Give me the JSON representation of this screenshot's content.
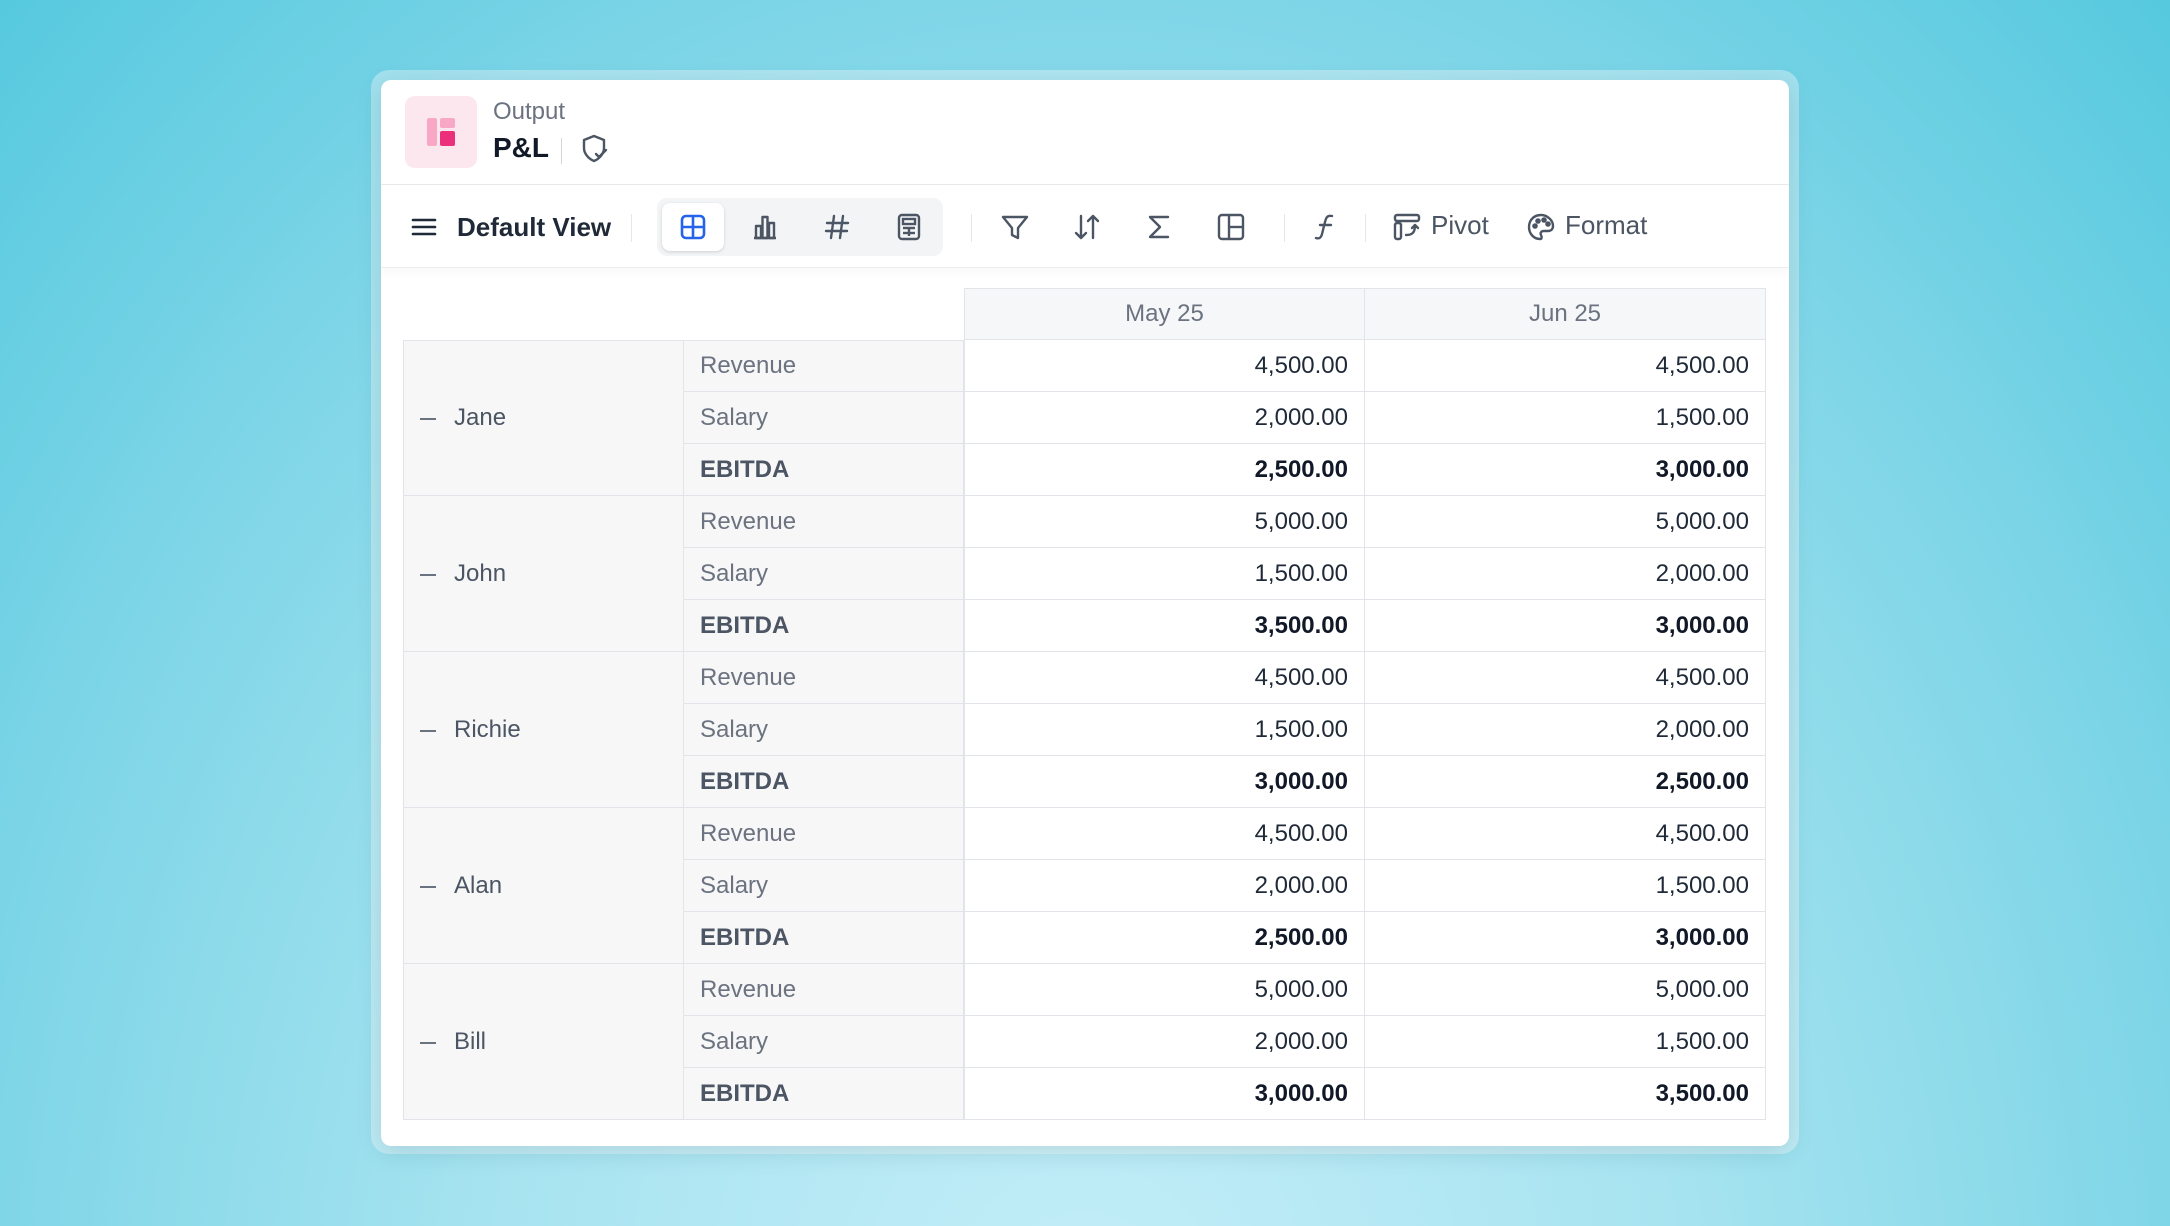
{
  "header": {
    "subtitle": "Output",
    "title": "P&L"
  },
  "toolbar": {
    "view_label": "Default View",
    "pivot_label": "Pivot",
    "format_label": "Format",
    "accent": "#2563eb"
  },
  "table": {
    "columns": [
      "May 25",
      "Jun 25"
    ],
    "groups": [
      {
        "name": "Jane",
        "rows": [
          {
            "metric": "Revenue",
            "values": [
              "4,500.00",
              "4,500.00"
            ],
            "bold": false
          },
          {
            "metric": "Salary",
            "values": [
              "2,000.00",
              "1,500.00"
            ],
            "bold": false
          },
          {
            "metric": "EBITDA",
            "values": [
              "2,500.00",
              "3,000.00"
            ],
            "bold": true
          }
        ]
      },
      {
        "name": "John",
        "rows": [
          {
            "metric": "Revenue",
            "values": [
              "5,000.00",
              "5,000.00"
            ],
            "bold": false
          },
          {
            "metric": "Salary",
            "values": [
              "1,500.00",
              "2,000.00"
            ],
            "bold": false
          },
          {
            "metric": "EBITDA",
            "values": [
              "3,500.00",
              "3,000.00"
            ],
            "bold": true
          }
        ]
      },
      {
        "name": "Richie",
        "rows": [
          {
            "metric": "Revenue",
            "values": [
              "4,500.00",
              "4,500.00"
            ],
            "bold": false
          },
          {
            "metric": "Salary",
            "values": [
              "1,500.00",
              "2,000.00"
            ],
            "bold": false
          },
          {
            "metric": "EBITDA",
            "values": [
              "3,000.00",
              "2,500.00"
            ],
            "bold": true
          }
        ]
      },
      {
        "name": "Alan",
        "rows": [
          {
            "metric": "Revenue",
            "values": [
              "4,500.00",
              "4,500.00"
            ],
            "bold": false
          },
          {
            "metric": "Salary",
            "values": [
              "2,000.00",
              "1,500.00"
            ],
            "bold": false
          },
          {
            "metric": "EBITDA",
            "values": [
              "2,500.00",
              "3,000.00"
            ],
            "bold": true
          }
        ]
      },
      {
        "name": "Bill",
        "rows": [
          {
            "metric": "Revenue",
            "values": [
              "5,000.00",
              "5,000.00"
            ],
            "bold": false
          },
          {
            "metric": "Salary",
            "values": [
              "2,000.00",
              "1,500.00"
            ],
            "bold": false
          },
          {
            "metric": "EBITDA",
            "values": [
              "3,000.00",
              "3,500.00"
            ],
            "bold": true
          }
        ]
      }
    ]
  }
}
